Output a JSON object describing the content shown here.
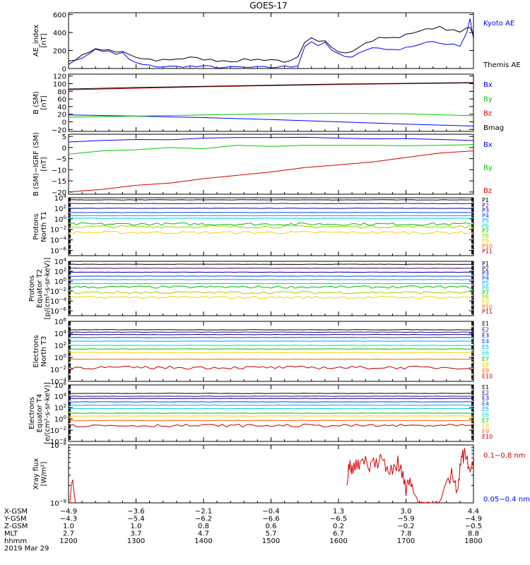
{
  "title": "GOES-17",
  "colors": {
    "axis": "#000000",
    "blue": "#0000ff",
    "green": "#00c800",
    "red": "#d40000",
    "black": "#000000"
  },
  "chart_data": [
    {
      "type": "line",
      "id": "ae",
      "ylabel": "AE_index\n[nT]",
      "ylim": [
        0,
        620
      ],
      "yticks": [
        0,
        200,
        400,
        600
      ],
      "ytick_labels": [
        "0",
        "200",
        "400",
        "600"
      ],
      "legend": [
        {
          "name": "Kyoto AE",
          "color": "#0000ff"
        },
        {
          "name": "Themis AE",
          "color": "#000000"
        }
      ],
      "series": [
        {
          "name": "Kyoto AE",
          "color": "#0000ff",
          "x": [
            1200,
            1210,
            1220,
            1230,
            1240,
            1250,
            1260,
            1270,
            1280,
            1290,
            1300,
            1310,
            1320,
            1330,
            1340,
            1350,
            1360,
            1370,
            1380,
            1390,
            1400,
            1410,
            1420,
            1430,
            1440,
            1450,
            1460,
            1470,
            1480,
            1490,
            1500,
            1510,
            1520,
            1530,
            1540,
            1550,
            1560,
            1570,
            1580,
            1590,
            1600,
            1610,
            1620,
            1630,
            1640,
            1650,
            1660,
            1670,
            1680,
            1690,
            1700,
            1710,
            1720,
            1730,
            1740,
            1750,
            1760,
            1770,
            1780,
            1790,
            1795,
            1800
          ],
          "y": [
            60,
            80,
            120,
            170,
            210,
            190,
            200,
            150,
            170,
            100,
            60,
            40,
            30,
            25,
            20,
            20,
            20,
            25,
            25,
            20,
            20,
            20,
            15,
            10,
            10,
            15,
            10,
            10,
            10,
            10,
            10,
            20,
            20,
            20,
            40,
            250,
            300,
            260,
            280,
            200,
            160,
            120,
            140,
            180,
            200,
            230,
            230,
            220,
            200,
            220,
            240,
            250,
            260,
            280,
            300,
            290,
            270,
            280,
            250,
            400,
            560,
            330
          ]
        },
        {
          "name": "Themis AE",
          "color": "#000000",
          "x": [
            1200,
            1210,
            1220,
            1230,
            1240,
            1250,
            1260,
            1270,
            1280,
            1290,
            1300,
            1310,
            1320,
            1330,
            1340,
            1350,
            1360,
            1370,
            1380,
            1390,
            1400,
            1410,
            1420,
            1430,
            1440,
            1450,
            1460,
            1470,
            1480,
            1490,
            1500,
            1510,
            1520,
            1530,
            1540,
            1550,
            1560,
            1570,
            1580,
            1590,
            1600,
            1610,
            1620,
            1630,
            1640,
            1650,
            1660,
            1670,
            1680,
            1690,
            1700,
            1710,
            1720,
            1730,
            1740,
            1750,
            1760,
            1770,
            1780,
            1790,
            1795,
            1800
          ],
          "y": [
            80,
            100,
            140,
            180,
            210,
            200,
            205,
            180,
            190,
            150,
            110,
            110,
            100,
            90,
            100,
            100,
            110,
            110,
            120,
            110,
            105,
            95,
            90,
            90,
            85,
            90,
            95,
            100,
            100,
            100,
            100,
            90,
            80,
            80,
            120,
            280,
            330,
            290,
            300,
            240,
            200,
            180,
            200,
            250,
            280,
            310,
            340,
            340,
            340,
            350,
            370,
            400,
            420,
            430,
            450,
            470,
            440,
            420,
            400,
            440,
            470,
            360
          ]
        }
      ]
    },
    {
      "type": "line",
      "id": "bsm",
      "ylabel": "B (SM)\n[nT]",
      "ylim": [
        -25,
        125
      ],
      "yticks": [
        -20,
        0,
        20,
        40,
        60,
        80,
        100,
        120
      ],
      "ytick_labels": [
        "−20",
        "0",
        "20",
        "40",
        "60",
        "80",
        "100",
        "120"
      ],
      "legend": [
        {
          "name": "Bx",
          "color": "#0000ff"
        },
        {
          "name": "By",
          "color": "#00c800"
        },
        {
          "name": "Bz",
          "color": "#d40000"
        },
        {
          "name": "Bmag",
          "color": "#000000"
        }
      ],
      "series": [
        {
          "name": "Bx",
          "color": "#0000ff",
          "x": [
            1200,
            1300,
            1400,
            1500,
            1600,
            1700,
            1800
          ],
          "y": [
            18,
            15,
            11,
            6,
            0,
            -6,
            -11
          ]
        },
        {
          "name": "By",
          "color": "#00c800",
          "x": [
            1200,
            1300,
            1400,
            1500,
            1600,
            1700,
            1800
          ],
          "y": [
            12,
            15,
            18,
            21,
            22,
            21,
            16
          ]
        },
        {
          "name": "Bz",
          "color": "#d40000",
          "x": [
            1200,
            1300,
            1400,
            1500,
            1600,
            1700,
            1800
          ],
          "y": [
            84,
            88,
            92,
            95,
            98,
            100,
            102
          ]
        },
        {
          "name": "Bmag",
          "color": "#000000",
          "x": [
            1200,
            1300,
            1400,
            1500,
            1600,
            1700,
            1800
          ],
          "y": [
            86,
            90,
            93,
            96,
            99,
            101,
            103
          ]
        }
      ]
    },
    {
      "type": "line",
      "id": "bigrf",
      "ylabel": "B (SM)−IGRF (SM)\n[nT]",
      "ylim": [
        -21,
        6
      ],
      "yticks": [
        -20,
        -15,
        -10,
        -5,
        0,
        5
      ],
      "ytick_labels": [
        "−20",
        "−15",
        "−10",
        "−5",
        "0",
        "5"
      ],
      "legend": [
        {
          "name": "Bx",
          "color": "#0000ff"
        },
        {
          "name": "By",
          "color": "#00c800"
        },
        {
          "name": "Bz",
          "color": "#d40000"
        }
      ],
      "series": [
        {
          "name": "Bx",
          "color": "#0000ff",
          "x": [
            1200,
            1250,
            1300,
            1350,
            1400,
            1450,
            1500,
            1550,
            1600,
            1650,
            1700,
            1750,
            1800
          ],
          "y": [
            2.5,
            3.2,
            3.6,
            3.5,
            4.2,
            4.5,
            4.5,
            4.6,
            4.2,
            3.9,
            4.0,
            3.6,
            3.2
          ]
        },
        {
          "name": "By",
          "color": "#00c800",
          "x": [
            1200,
            1250,
            1300,
            1350,
            1400,
            1450,
            1500,
            1550,
            1600,
            1650,
            1700,
            1750,
            1800
          ],
          "y": [
            -3.0,
            -1.5,
            -1.0,
            0.0,
            -0.5,
            1.0,
            0.5,
            1.0,
            1.0,
            1.0,
            0.8,
            1.0,
            1.3
          ]
        },
        {
          "name": "Bz",
          "color": "#d40000",
          "x": [
            1200,
            1250,
            1300,
            1350,
            1400,
            1450,
            1500,
            1550,
            1600,
            1650,
            1700,
            1750,
            1800
          ],
          "y": [
            -20,
            -18.8,
            -17,
            -16,
            -14,
            -12.5,
            -11,
            -9,
            -7.8,
            -6.5,
            -4.5,
            -2.5,
            -1.5
          ]
        }
      ]
    },
    {
      "type": "line",
      "id": "pn",
      "ylabel": "Protons\nNorth T1",
      "yscale": "log",
      "ylim_exp": [
        -7,
        4
      ],
      "ytick_exps": [
        -6,
        -4,
        -2,
        0,
        2,
        4
      ],
      "legend_names": [
        "P1",
        "P2",
        "P3",
        "P4",
        "P5",
        "P6",
        "P7",
        "P8",
        "P9",
        "P10",
        "P11"
      ],
      "series_colors": [
        "#000000",
        "#3a0080",
        "#00008b",
        "#0040ff",
        "#00a0ff",
        "#00d0d0",
        "#00c000",
        "#a0d000",
        "#ffd000",
        "#ff6000",
        "#c00000"
      ],
      "series_levels_exp": [
        3.6,
        2.9,
        2.0,
        1.2,
        0.6,
        0.1,
        -1.0,
        -1.5,
        -2.6,
        null,
        null
      ],
      "series_name_style": "P"
    },
    {
      "type": "line",
      "id": "pe",
      "ylabel": "Protons\nEquator T2\n[p/(cm²-s-sr-keV)]",
      "yscale": "log",
      "ylim_exp": [
        -7,
        4
      ],
      "ytick_exps": [
        -6,
        -4,
        -2,
        0,
        2,
        4
      ],
      "legend_names": [
        "P1",
        "P2",
        "P3",
        "P4",
        "P5",
        "P6",
        "P7",
        "P8",
        "P9",
        "P10",
        "P11"
      ],
      "series_colors": [
        "#000000",
        "#3a0080",
        "#00008b",
        "#0040ff",
        "#00a0ff",
        "#00d0d0",
        "#00c000",
        "#a0d000",
        "#ffd000",
        "#ff6000",
        "#c00000"
      ],
      "series_levels_exp": [
        3.4,
        2.6,
        1.8,
        1.0,
        0.3,
        -0.5,
        -1.2,
        -2.3,
        -3.3,
        null,
        null
      ]
    },
    {
      "type": "line",
      "id": "en",
      "ylabel": "Electrons\nNorth T3",
      "yscale": "log",
      "ylim_exp": [
        -4,
        6
      ],
      "ytick_exps": [
        -4,
        -2,
        0,
        2,
        4,
        6
      ],
      "legend_names": [
        "E1",
        "E2",
        "E3",
        "E4",
        "E5",
        "E6",
        "E7",
        "E8",
        "E9",
        "E10"
      ],
      "series_colors": [
        "#000000",
        "#3a0080",
        "#00008b",
        "#0040ff",
        "#00a0ff",
        "#00d0d0",
        "#00c000",
        "#ffd000",
        "#ff6000",
        "#c00000"
      ],
      "series_levels_exp": [
        4.6,
        4.2,
        3.8,
        3.3,
        2.7,
        2.0,
        1.4,
        0.8,
        -0.3,
        -1.7
      ]
    },
    {
      "type": "line",
      "id": "ee",
      "ylabel": "Electrons\nEquator T4\n[e/(cm²-s-sr-keV)]",
      "yscale": "log",
      "ylim_exp": [
        -4,
        6
      ],
      "ytick_exps": [
        -4,
        -2,
        0,
        2,
        4,
        6
      ],
      "legend_names": [
        "E1",
        "E2",
        "E3",
        "E4",
        "E5",
        "E6",
        "E7",
        "E8",
        "E9",
        "E10"
      ],
      "series_colors": [
        "#000000",
        "#3a0080",
        "#00008b",
        "#0040ff",
        "#00a0ff",
        "#00d0d0",
        "#00c000",
        "#ffd000",
        "#ff6000",
        "#c00000"
      ],
      "series_levels_exp": [
        4.5,
        4.0,
        3.6,
        3.0,
        2.4,
        1.8,
        1.0,
        0.5,
        -0.3,
        -1.2
      ]
    },
    {
      "type": "line",
      "id": "xray",
      "ylabel": "Xray flux\n[W/m²]",
      "yscale": "log",
      "ylim_exp": [
        -9,
        -8
      ],
      "ytick_exps": [
        -9,
        -8
      ],
      "legend": [
        {
          "name": "0.1−0.8 nm",
          "color": "#d40000"
        },
        {
          "name": "0.05−0.4 nm",
          "color": "#0000ff"
        }
      ],
      "series": [
        {
          "name": "0.1−0.8 nm",
          "color": "#d40000",
          "x": [
            1202,
            1204,
            1206,
            1208,
            1210,
            1612,
            1616,
            1620,
            1626,
            1632,
            1640,
            1648,
            1656,
            1664,
            1672,
            1680,
            1688,
            1694,
            1700,
            1706,
            1712,
            1720,
            1730,
            1740,
            1750,
            1760,
            1770,
            1776,
            1780,
            1784,
            1788,
            1792,
            1796,
            1800
          ],
          "y_exp": [
            -9.0,
            -8.7,
            -8.6,
            -8.8,
            -9.0,
            -8.6,
            -8.35,
            -8.4,
            -8.3,
            -8.35,
            -8.25,
            -8.4,
            -8.3,
            -8.2,
            -8.4,
            -8.5,
            -8.3,
            -8.5,
            -8.8,
            -8.6,
            -8.9,
            -9.0,
            -9.0,
            -9.0,
            -9.0,
            -8.6,
            -8.5,
            -8.9,
            -8.4,
            -8.2,
            -8.15,
            -8.3,
            -8.5,
            -8.2
          ]
        }
      ]
    }
  ],
  "xaxis": {
    "xlim": [
      1200,
      1800
    ],
    "tick_labels": [
      "1200",
      "1300",
      "1400",
      "1500",
      "1600",
      "1700",
      "1800"
    ],
    "rows": [
      {
        "label": "X-GSM",
        "values": [
          "−4.9",
          "−3.6",
          "−2.1",
          "−0.4",
          "1.3",
          "3.0",
          "4.4"
        ]
      },
      {
        "label": "Y-GSM",
        "values": [
          "−4.3",
          "−5.4",
          "−6.2",
          "−6.6",
          "−6.5",
          "−5.9",
          "−4.9"
        ]
      },
      {
        "label": "Z-GSM",
        "values": [
          "1.0",
          "1.0",
          "0.8",
          "0.6",
          "0.2",
          "−0.2",
          "−0.5"
        ]
      },
      {
        "label": "MLT",
        "values": [
          "2.7",
          "3.7",
          "4.7",
          "5.7",
          "6.7",
          "7.8",
          "8.8"
        ]
      },
      {
        "label": "hhmm",
        "values": [
          "1200",
          "1300",
          "1400",
          "1500",
          "1600",
          "1700",
          "1800"
        ]
      }
    ],
    "date": "2019 Mar 29"
  }
}
